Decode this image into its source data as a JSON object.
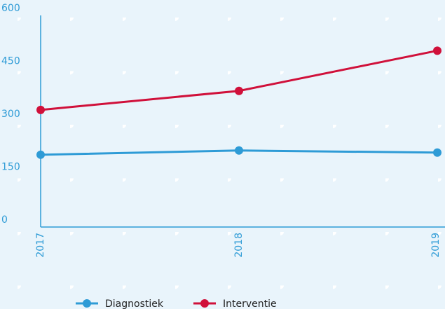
{
  "chart_data": {
    "type": "line",
    "categories": [
      "2017",
      "2018",
      "2019"
    ],
    "series": [
      {
        "name": "Diagnostiek",
        "color": "#2e9bd6",
        "values": [
          205,
          217,
          211
        ]
      },
      {
        "name": "Interventie",
        "color": "#d0103a",
        "values": [
          332,
          386,
          500
        ]
      }
    ],
    "ylim": [
      0,
      600
    ],
    "yticks": [
      0,
      150,
      300,
      450,
      600
    ]
  }
}
